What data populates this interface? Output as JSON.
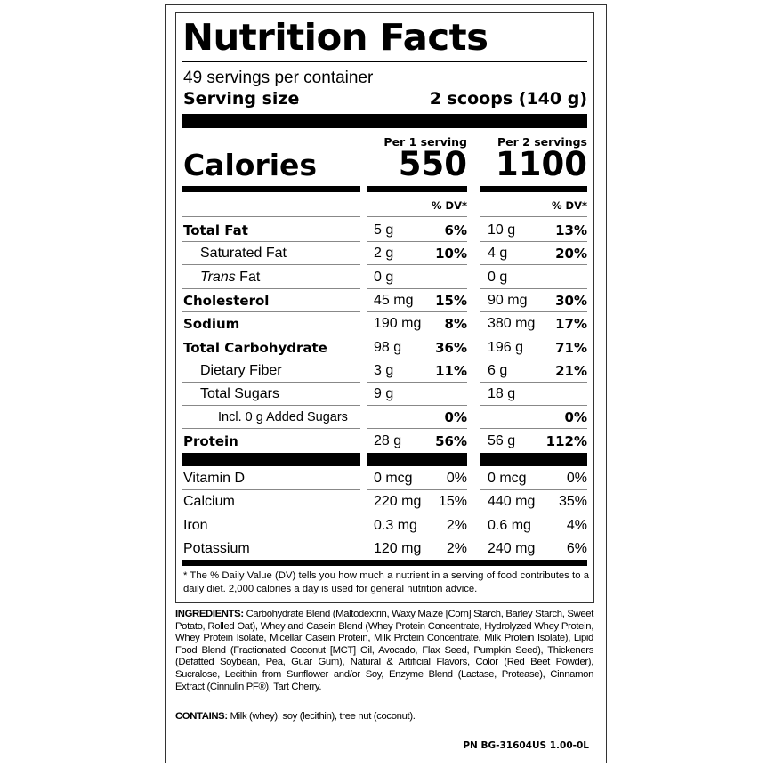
{
  "title": "Nutrition Facts",
  "servings_per_container": "49 servings per container",
  "serving_size_label": "Serving size",
  "serving_size_value": "2 scoops (140 g)",
  "col1_header": "Per 1 serving",
  "col2_header": "Per 2 servings",
  "calories_label": "Calories",
  "calories_1": "550",
  "calories_2": "1100",
  "dv_header": "% DV*",
  "nutrients": [
    {
      "label": "Total Fat",
      "a1": "5 g",
      "p1": "6%",
      "a2": "10 g",
      "p2": "13%"
    },
    {
      "label": "Saturated Fat",
      "a1": "2 g",
      "p1": "10%",
      "a2": "4 g",
      "p2": "20%"
    },
    {
      "label_italic": "Trans",
      "label": " Fat",
      "a1": "0 g",
      "p1": "",
      "a2": "0 g",
      "p2": ""
    },
    {
      "label": "Cholesterol",
      "a1": "45 mg",
      "p1": "15%",
      "a2": "90 mg",
      "p2": "30%"
    },
    {
      "label": "Sodium",
      "a1": "190 mg",
      "p1": "8%",
      "a2": "380 mg",
      "p2": "17%"
    },
    {
      "label": "Total Carbohydrate",
      "a1": "98 g",
      "p1": "36%",
      "a2": "196 g",
      "p2": "71%"
    },
    {
      "label": "Dietary Fiber",
      "a1": "3 g",
      "p1": "11%",
      "a2": "6 g",
      "p2": "21%"
    },
    {
      "label": "Total Sugars",
      "a1": "9 g",
      "p1": "",
      "a2": "18 g",
      "p2": ""
    },
    {
      "label": "Incl. 0 g Added Sugars",
      "a1": "",
      "p1": "0%",
      "a2": "",
      "p2": "0%"
    },
    {
      "label": "Protein",
      "a1": "28 g",
      "p1": "56%",
      "a2": "56 g",
      "p2": "112%"
    }
  ],
  "vitamins": [
    {
      "label": "Vitamin D",
      "a1": "0 mcg",
      "p1": "0%",
      "a2": "0 mcg",
      "p2": "0%"
    },
    {
      "label": "Calcium",
      "a1": "220 mg",
      "p1": "15%",
      "a2": "440 mg",
      "p2": "35%"
    },
    {
      "label": "Iron",
      "a1": "0.3 mg",
      "p1": "2%",
      "a2": "0.6 mg",
      "p2": "4%"
    },
    {
      "label": "Potassium",
      "a1": "120 mg",
      "p1": "2%",
      "a2": "240 mg",
      "p2": "6%"
    }
  ],
  "footnote": "* The % Daily Value (DV) tells you how much a nutrient in a serving of food contributes to a daily diet. 2,000 calories a day is used for general nutrition advice.",
  "ingredients_label": "INGREDIENTS:",
  "ingredients": " Carbohydrate Blend (Maltodextrin, Waxy Maize [Corn] Starch, Barley Starch, Sweet Potato, Rolled Oat), Whey and Casein Blend (Whey Protein Concentrate, Hydrolyzed Whey Protein, Whey Protein Isolate, Micellar Casein Protein, Milk Protein Concentrate, Milk Protein Isolate), Lipid Food Blend (Fractionated Coconut [MCT] Oil, Avocado, Flax Seed, Pumpkin Seed), Thickeners (Defatted Soybean, Pea, Guar Gum), Natural & Artificial Flavors, Color (Red Beet Powder), Sucralose, Lecithin from Sunflower and/or Soy, Enzyme Blend (Lactase, Protease), Cinnamon Extract (Cinnulin PF®), Tart Cherry.",
  "contains_label": "CONTAINS:",
  "contains": " Milk (whey), soy (lecithin), tree nut (coconut).",
  "part_number": "PN BG-31604US 1.00-0L"
}
